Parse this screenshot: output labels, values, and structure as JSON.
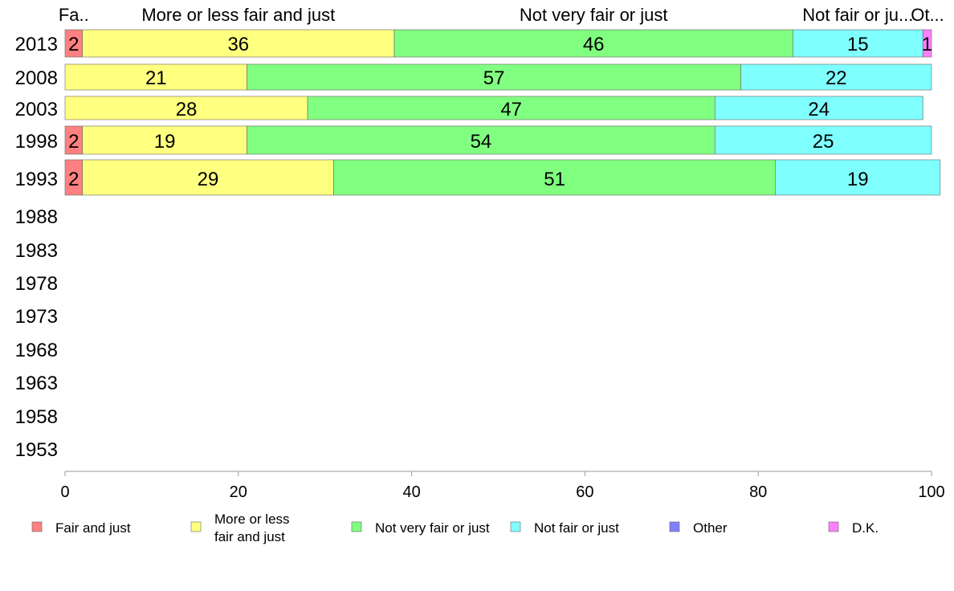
{
  "chart_data": {
    "type": "bar",
    "orientation": "horizontal",
    "stacked": true,
    "categories": [
      "2013",
      "2008",
      "2003",
      "1998",
      "1993",
      "1988",
      "1983",
      "1978",
      "1973",
      "1968",
      "1963",
      "1958",
      "1953"
    ],
    "series": [
      {
        "name": "Fair and just",
        "color": "#ff8080",
        "values": [
          2,
          0,
          0,
          2,
          2,
          null,
          null,
          null,
          null,
          null,
          null,
          null,
          null
        ]
      },
      {
        "name": "More or less fair and just",
        "color": "#ffff80",
        "values": [
          36,
          21,
          28,
          19,
          29,
          null,
          null,
          null,
          null,
          null,
          null,
          null,
          null
        ]
      },
      {
        "name": "Not very fair or just",
        "color": "#80ff80",
        "values": [
          46,
          57,
          47,
          54,
          51,
          null,
          null,
          null,
          null,
          null,
          null,
          null,
          null
        ]
      },
      {
        "name": "Not fair or just",
        "color": "#80ffff",
        "values": [
          15,
          22,
          24,
          25,
          19,
          null,
          null,
          null,
          null,
          null,
          null,
          null,
          null
        ]
      },
      {
        "name": "Other",
        "color": "#8080ff",
        "values": [
          0,
          0,
          0,
          0,
          0,
          null,
          null,
          null,
          null,
          null,
          null,
          null,
          null
        ]
      },
      {
        "name": "D.K.",
        "color": "#ff80ff",
        "values": [
          1,
          0,
          0,
          0,
          0,
          null,
          null,
          null,
          null,
          null,
          null,
          null,
          null
        ]
      }
    ],
    "top_labels": [
      "Fa..",
      "More or less fair and just",
      "Not very fair or just",
      "Not fair or ju...",
      "Ot..."
    ],
    "legend_labels": [
      [
        "Fair and just"
      ],
      [
        "More or less",
        "fair and just"
      ],
      [
        "Not very fair or just"
      ],
      [
        "Not fair or just"
      ],
      [
        "Other"
      ],
      [
        "D.K."
      ]
    ],
    "xlim": [
      0,
      100
    ],
    "xticks": [
      "0",
      "20",
      "40",
      "60",
      "80",
      "100"
    ],
    "legend_position": "bottom",
    "grid": false
  }
}
